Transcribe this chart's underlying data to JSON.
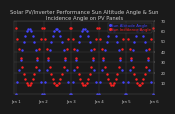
{
  "title": "Solar PV/Inverter Performance Sun Altitude Angle & Sun Incidence Angle on PV Panels",
  "series": [
    {
      "label": "Sun Altitude Angle",
      "color": "#4444FF",
      "marker": ".",
      "markersize": 1.5
    },
    {
      "label": "Sun Incidence Angle",
      "color": "#FF2222",
      "marker": ".",
      "markersize": 1.5
    }
  ],
  "n_days": 5,
  "pts_per_day": 18,
  "ylim": [
    0,
    70
  ],
  "yticks": [
    10,
    20,
    30,
    40,
    50,
    60,
    70
  ],
  "bg_color": "#1a1a1a",
  "plot_bg": "#1a1a1a",
  "grid_color": "#555555",
  "text_color": "#cccccc",
  "title_fontsize": 3.8,
  "tick_fontsize": 2.8,
  "legend_fontsize": 2.8,
  "altitude_peak": 62,
  "incidence_base": 8,
  "incidence_range": 55
}
